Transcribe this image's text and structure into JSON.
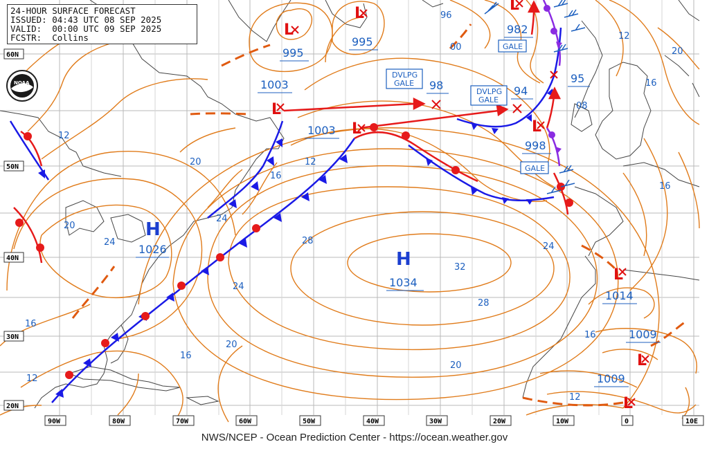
{
  "header": {
    "title": "24-HOUR SURFACE FORECAST",
    "issued": "ISSUED: 04:43 UTC 08 SEP 2025",
    "valid": "VALID:  00:00 UTC 09 SEP 2025",
    "forecaster": "FCSTR:  Collins"
  },
  "logo": {
    "text": "NOAA"
  },
  "footer": "NWS/NCEP - Ocean Prediction Center - https://ocean.weather.gov",
  "lat_labels": [
    "60N",
    "50N",
    "40N",
    "30N",
    "20N"
  ],
  "lon_labels": [
    "90W",
    "80W",
    "70W",
    "60W",
    "50W",
    "40W",
    "30W",
    "20W",
    "10W",
    "0",
    "10E"
  ],
  "highs": [
    {
      "letter": "H",
      "pressure": "1026"
    },
    {
      "letter": "H",
      "pressure": "1034"
    }
  ],
  "lows": [
    {
      "pressure": "995"
    },
    {
      "pressure": "995"
    },
    {
      "pressure": "982"
    },
    {
      "pressure": "1003"
    },
    {
      "pressure": "1003"
    },
    {
      "pressure": "98"
    },
    {
      "pressure": "94"
    },
    {
      "pressure": "95"
    },
    {
      "pressure": "998"
    },
    {
      "pressure": "1014"
    },
    {
      "pressure": "1009"
    },
    {
      "pressure": "1009"
    }
  ],
  "warnings": [
    {
      "text1": "DVLPG",
      "text2": "GALE"
    },
    {
      "text1": "DVLPG",
      "text2": "GALE"
    },
    {
      "text1": "GALE",
      "text2": ""
    },
    {
      "text1": "GALE",
      "text2": ""
    }
  ],
  "thickness_labels": [
    "96",
    "00",
    "12",
    "20",
    "16",
    "08",
    "12",
    "16",
    "20",
    "24",
    "24",
    "28",
    "32",
    "28",
    "24",
    "20",
    "16",
    "16",
    "20",
    "12",
    "16",
    "24",
    "12",
    "16",
    "12"
  ],
  "colors": {
    "isobar": "#e07b1a",
    "cold_front": "#1a1ae6",
    "warm_front": "#e61a1a",
    "occluded": "#8a2be2",
    "track": "#e61a1a",
    "coast": "#333333",
    "grid": "#b0b0b0",
    "label_blue": "#1c5fbf"
  }
}
